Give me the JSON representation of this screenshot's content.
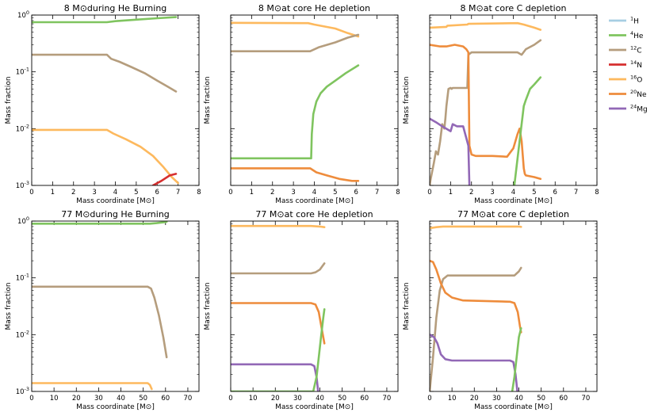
{
  "chart_data": {
    "type": "line",
    "yscale": "log",
    "ylabel": "Mass fraction",
    "ylim": [
      0.001,
      1
    ],
    "ytick_labels": [
      "10-3",
      "10-2",
      "10-1",
      "100"
    ],
    "colors": {
      "1H": "#a6cee3",
      "4He": "#7fc45f",
      "12C": "#b59d7d",
      "14N": "#d62f2f",
      "16O": "#fdb95e",
      "20Ne": "#ee8c3c",
      "24Mg": "#9268b6"
    },
    "legend": {
      "placement": "right",
      "entries": [
        {
          "key": "1H",
          "sup": "1",
          "sym": "H"
        },
        {
          "key": "4He",
          "sup": "4",
          "sym": "He"
        },
        {
          "key": "12C",
          "sup": "12",
          "sym": "C"
        },
        {
          "key": "14N",
          "sup": "14",
          "sym": "N"
        },
        {
          "key": "16O",
          "sup": "16",
          "sym": "O"
        },
        {
          "key": "20Ne",
          "sup": "20",
          "sym": "Ne"
        },
        {
          "key": "24Mg",
          "sup": "24",
          "sym": "Mg"
        }
      ]
    },
    "panels": [
      {
        "title": "8 M⊙during He Burning",
        "xlabel": "Mass coordinate [M⊙]",
        "xlim": [
          0,
          8
        ],
        "xticks": [
          0,
          1,
          2,
          3,
          4,
          5,
          6,
          7,
          8
        ],
        "show_ytick_labels": true,
        "series": [
          {
            "name": "4He",
            "x": [
              0,
              3.6,
              4,
              5,
              6,
              6.9
            ],
            "y": [
              0.75,
              0.75,
              0.78,
              0.83,
              0.88,
              0.92
            ]
          },
          {
            "name": "12C",
            "x": [
              0,
              3.6,
              3.8,
              4.2,
              4.8,
              5.4,
              6,
              6.5,
              6.9
            ],
            "y": [
              0.2,
              0.2,
              0.17,
              0.15,
              0.12,
              0.095,
              0.07,
              0.055,
              0.045
            ]
          },
          {
            "name": "16O",
            "x": [
              0,
              3.6,
              3.9,
              4.5,
              5.2,
              5.8,
              6.3,
              6.7,
              7.0
            ],
            "y": [
              0.0095,
              0.0095,
              0.0082,
              0.0065,
              0.0048,
              0.0033,
              0.0021,
              0.0014,
              0.0011
            ]
          },
          {
            "name": "14N",
            "x": [
              5.8,
              6.2,
              6.6,
              6.9
            ],
            "y": [
              0.001,
              0.0012,
              0.0015,
              0.0016
            ]
          }
        ]
      },
      {
        "title": "8 M⊙at core He depletion",
        "xlabel": "Mass coordinate [M⊙]",
        "xlim": [
          0,
          8
        ],
        "xticks": [
          0,
          1,
          2,
          3,
          4,
          5,
          6,
          7,
          8
        ],
        "show_ytick_labels": false,
        "series": [
          {
            "name": "16O",
            "x": [
              0,
              3.7,
              4,
              5,
              5.6,
              6.1
            ],
            "y": [
              0.73,
              0.72,
              0.68,
              0.58,
              0.48,
              0.42
            ]
          },
          {
            "name": "12C",
            "x": [
              0,
              3.8,
              4.2,
              5,
              5.6,
              6.1
            ],
            "y": [
              0.23,
              0.23,
              0.27,
              0.33,
              0.4,
              0.45
            ]
          },
          {
            "name": "4He",
            "x": [
              0,
              3.85,
              3.88,
              3.95,
              4.1,
              4.3,
              4.6,
              5,
              5.5,
              6.1
            ],
            "y": [
              0.003,
              0.003,
              0.008,
              0.018,
              0.03,
              0.042,
              0.055,
              0.07,
              0.095,
              0.13
            ]
          },
          {
            "name": "20Ne",
            "x": [
              0,
              3.8,
              4.1,
              4.6,
              5.2,
              5.8,
              6.1
            ],
            "y": [
              0.002,
              0.002,
              0.0017,
              0.0015,
              0.0013,
              0.0012,
              0.0012
            ]
          }
        ]
      },
      {
        "title": "8 M⊙at core C depletion",
        "xlabel": "Mass coordinate [M⊙]",
        "xlim": [
          0,
          8
        ],
        "xticks": [
          0,
          1,
          2,
          3,
          4,
          5,
          6,
          7,
          8
        ],
        "show_ytick_labels": false,
        "series": [
          {
            "name": "16O",
            "x": [
              0,
              0.8,
              0.85,
              1.8,
              1.85,
              4.2,
              4.5,
              5,
              5.3
            ],
            "y": [
              0.6,
              0.62,
              0.65,
              0.68,
              0.7,
              0.72,
              0.68,
              0.6,
              0.55
            ]
          },
          {
            "name": "12C",
            "x": [
              0,
              0.05,
              0.2,
              0.3,
              0.4,
              0.5,
              0.6,
              0.7,
              0.75,
              0.8,
              0.9,
              1.0,
              1.05,
              1.1,
              1.8,
              1.85,
              2.0,
              4.0,
              4.2,
              4.4,
              4.6,
              5.0,
              5.3
            ],
            "y": [
              0.001,
              0.0013,
              0.0025,
              0.004,
              0.0035,
              0.006,
              0.012,
              0.01,
              0.015,
              0.025,
              0.05,
              0.052,
              0.05,
              0.052,
              0.052,
              0.2,
              0.22,
              0.22,
              0.22,
              0.2,
              0.25,
              0.3,
              0.36
            ]
          },
          {
            "name": "20Ne",
            "x": [
              0,
              0.5,
              0.8,
              1.2,
              1.6,
              1.75,
              1.85,
              1.9,
              2.0,
              2.2,
              3.0,
              3.7,
              4.0,
              4.2,
              4.3,
              4.4,
              4.5,
              4.55,
              4.6,
              5.0,
              5.3
            ],
            "y": [
              0.3,
              0.28,
              0.28,
              0.3,
              0.28,
              0.25,
              0.22,
              0.005,
              0.0035,
              0.0033,
              0.0033,
              0.0032,
              0.0045,
              0.008,
              0.01,
              0.006,
              0.002,
              0.0016,
              0.0015,
              0.0014,
              0.0013
            ]
          },
          {
            "name": "24Mg",
            "x": [
              0,
              0.3,
              0.6,
              1.0,
              1.1,
              1.3,
              1.6,
              1.85,
              1.9
            ],
            "y": [
              0.015,
              0.013,
              0.011,
              0.009,
              0.012,
              0.011,
              0.011,
              0.005,
              0.001
            ]
          },
          {
            "name": "4He",
            "x": [
              4.05,
              4.3,
              4.5,
              4.6,
              4.8,
              5.0,
              5.3
            ],
            "y": [
              0.001,
              0.006,
              0.025,
              0.032,
              0.05,
              0.06,
              0.08
            ]
          }
        ]
      },
      {
        "title": "77 M⊙during He Burning",
        "xlabel": "Mass coordinate [M⊙]",
        "xlim": [
          0,
          75
        ],
        "xticks": [
          0,
          10,
          20,
          30,
          40,
          50,
          60,
          70
        ],
        "show_ytick_labels": true,
        "series": [
          {
            "name": "4He",
            "x": [
              0,
              53,
              56,
              59,
              60.5
            ],
            "y": [
              0.9,
              0.9,
              0.92,
              0.95,
              0.97
            ]
          },
          {
            "name": "12C",
            "x": [
              0,
              52,
              53.5,
              55,
              57,
              59,
              60.5
            ],
            "y": [
              0.07,
              0.07,
              0.065,
              0.045,
              0.022,
              0.009,
              0.004
            ]
          },
          {
            "name": "16O",
            "x": [
              0,
              52,
              53,
              53.8
            ],
            "y": [
              0.0014,
              0.0014,
              0.0013,
              0.0011
            ]
          }
        ]
      },
      {
        "title": "77 M⊙at core He depletion",
        "xlabel": "Mass coordinate [M⊙]",
        "xlim": [
          0,
          75
        ],
        "xticks": [
          0,
          10,
          20,
          30,
          40,
          50,
          60,
          70
        ],
        "show_ytick_labels": false,
        "series": [
          {
            "name": "16O",
            "x": [
              0,
              36,
              40,
              42
            ],
            "y": [
              0.82,
              0.82,
              0.8,
              0.78
            ]
          },
          {
            "name": "12C",
            "x": [
              0,
              36,
              38,
              40,
              42
            ],
            "y": [
              0.12,
              0.12,
              0.125,
              0.14,
              0.18
            ]
          },
          {
            "name": "20Ne",
            "x": [
              0,
              36,
              38,
              39.5,
              40.5,
              41.5,
              42
            ],
            "y": [
              0.036,
              0.036,
              0.034,
              0.025,
              0.015,
              0.009,
              0.007
            ]
          },
          {
            "name": "24Mg",
            "x": [
              0,
              36,
              37.5,
              38.5,
              39.2
            ],
            "y": [
              0.003,
              0.003,
              0.0028,
              0.0018,
              0.001
            ]
          },
          {
            "name": "4He",
            "x": [
              0,
              37,
              38.5,
              39.5,
              40.5,
              41.5,
              42
            ],
            "y": [
              0.001,
              0.001,
              0.0018,
              0.004,
              0.009,
              0.02,
              0.028
            ]
          }
        ]
      },
      {
        "title": "77 M⊙at core C depletion",
        "xlabel": "Mass coordinate [M⊙]",
        "xlim": [
          0,
          75
        ],
        "xticks": [
          0,
          10,
          20,
          30,
          40,
          50,
          60,
          70
        ],
        "show_ytick_labels": false,
        "series": [
          {
            "name": "16O",
            "x": [
              0,
              3,
              6,
              10,
              20,
              30,
              40,
              41
            ],
            "y": [
              0.75,
              0.78,
              0.8,
              0.8,
              0.8,
              0.8,
              0.8,
              0.79
            ]
          },
          {
            "name": "12C",
            "x": [
              0,
              1.5,
              3,
              4.5,
              6,
              8,
              12,
              38,
              40,
              41
            ],
            "y": [
              0.001,
              0.004,
              0.02,
              0.06,
              0.095,
              0.11,
              0.11,
              0.11,
              0.13,
              0.15
            ]
          },
          {
            "name": "20Ne",
            "x": [
              0,
              1.5,
              3,
              5,
              7,
              10,
              15,
              36,
              38,
              39.5,
              40.5,
              41
            ],
            "y": [
              0.2,
              0.19,
              0.14,
              0.08,
              0.055,
              0.045,
              0.04,
              0.038,
              0.036,
              0.025,
              0.014,
              0.011
            ]
          },
          {
            "name": "24Mg",
            "x": [
              0,
              2,
              3.5,
              5,
              7,
              10,
              20,
              36,
              37.5,
              38.5,
              39.3
            ],
            "y": [
              0.01,
              0.009,
              0.007,
              0.0045,
              0.0037,
              0.0035,
              0.0035,
              0.0035,
              0.0033,
              0.002,
              0.001
            ]
          },
          {
            "name": "4He",
            "x": [
              37,
              38,
              39,
              40,
              41
            ],
            "y": [
              0.001,
              0.0018,
              0.004,
              0.009,
              0.013
            ]
          }
        ]
      }
    ]
  }
}
